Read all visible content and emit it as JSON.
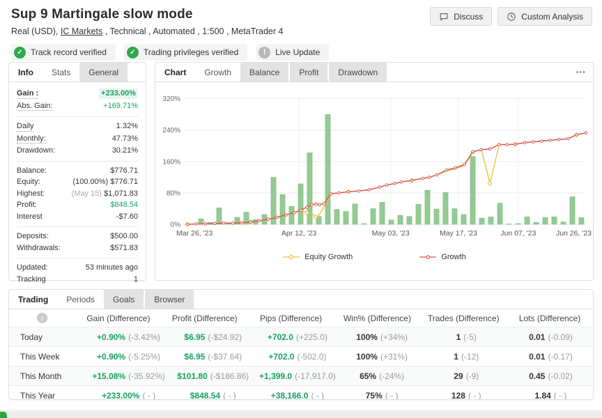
{
  "header": {
    "title": "Sup 9 Martingale slow mode",
    "subtitle_prefix": "Real (USD), ",
    "broker_link": "IC Markets",
    "subtitle_suffix": " , Technical , Automated , 1:500 , MetaTrader 4",
    "badges": [
      {
        "label": "Track record verified",
        "type": "verified",
        "icon": "check-icon"
      },
      {
        "label": "Trading privileges verified",
        "type": "verified",
        "icon": "check-icon"
      },
      {
        "label": "Live Update",
        "type": "live",
        "icon": "exclamation-icon"
      }
    ],
    "buttons": [
      {
        "label": "Discuss",
        "icon": "chat-icon"
      },
      {
        "label": "Custom Analysis",
        "icon": "clock-icon"
      }
    ]
  },
  "info_panel": {
    "tabs": [
      {
        "label": "Info",
        "state": "active"
      },
      {
        "label": "Stats",
        "state": "plain"
      },
      {
        "label": "General",
        "state": "shaded"
      }
    ],
    "rows": [
      {
        "label": "Gain :",
        "value": "+233.00%",
        "underline": 1,
        "label_bold": 1,
        "green": 1,
        "bold": 1,
        "highlight": 1
      },
      {
        "label": "Abs. Gain:",
        "value": "+169.71%",
        "underline": 1,
        "green": 1
      },
      {
        "label": "Daily",
        "value": "1.32%",
        "underline": 1,
        "sep": 1
      },
      {
        "label": "Monthly:",
        "value": "47.73%",
        "underline": 1
      },
      {
        "label": "Drawdown:",
        "value": "30.21%"
      },
      {
        "label": "Balance:",
        "value": "$776.71",
        "sep": 1
      },
      {
        "label": "Equity:",
        "value": "$776.71",
        "prefix": "(100.00%) "
      },
      {
        "label": "Highest:",
        "value": "$1,071.83",
        "prefix": "(May 15) ",
        "prefix_gray": 1
      },
      {
        "label": "Profit:",
        "value": "$848.54",
        "green": 1
      },
      {
        "label": "Interest",
        "value": "-$7.60"
      },
      {
        "label": "Deposits:",
        "value": "$500.00",
        "sep": 1
      },
      {
        "label": "Withdrawals:",
        "value": "$571.83"
      },
      {
        "label": "Updated:",
        "value": "53 minutes ago",
        "sep": 1
      },
      {
        "label": "Tracking",
        "value": "1"
      }
    ]
  },
  "chart_panel": {
    "tabs": [
      {
        "label": "Chart",
        "state": "active"
      },
      {
        "label": "Growth",
        "state": "plain"
      },
      {
        "label": "Balance",
        "state": "shaded"
      },
      {
        "label": "Profit",
        "state": "shaded"
      },
      {
        "label": "Drawdown",
        "state": "shaded"
      }
    ],
    "menu_icon": "•••"
  },
  "chart_data": {
    "type": "bar+line",
    "title": "Growth chart",
    "ylim": [
      0,
      330
    ],
    "y_ticks": [
      0,
      80,
      160,
      240,
      320
    ],
    "y_tick_labels": [
      "0%",
      "80%",
      "160%",
      "240%",
      "320%"
    ],
    "x_ticks": [
      {
        "pos": 0,
        "label": "Mar 26, '23"
      },
      {
        "pos": 0.28,
        "label": "Apr 12, '23"
      },
      {
        "pos": 0.51,
        "label": "May 03, '23"
      },
      {
        "pos": 0.68,
        "label": "May 17, '23"
      },
      {
        "pos": 0.83,
        "label": "Jun 07, '23"
      },
      {
        "pos": 1,
        "label": "Jun 26, '23"
      }
    ],
    "bars": {
      "name": "Periodic gain %",
      "color": "#8dc88d",
      "values": [
        1,
        14,
        5,
        42,
        4,
        18,
        31,
        12,
        25,
        120,
        76,
        46,
        103,
        182,
        20,
        280,
        38,
        33,
        52,
        2,
        40,
        56,
        11,
        23,
        20,
        51,
        87,
        39,
        81,
        40,
        25,
        173,
        16,
        19,
        54,
        1,
        2,
        19,
        5,
        17,
        19,
        6,
        70,
        17
      ]
    },
    "series": [
      {
        "name": "Equity Growth",
        "color": "#edc240",
        "marker": "diamond",
        "points": [
          [
            0,
            0
          ],
          [
            0.022,
            1
          ],
          [
            0.045,
            1
          ],
          [
            0.068,
            2
          ],
          [
            0.091,
            3
          ],
          [
            0.114,
            3
          ],
          [
            0.136,
            4
          ],
          [
            0.158,
            6
          ],
          [
            0.18,
            9
          ],
          [
            0.203,
            13
          ],
          [
            0.225,
            18
          ],
          [
            0.247,
            24
          ],
          [
            0.268,
            30
          ],
          [
            0.285,
            34
          ],
          [
            0.3,
            30
          ],
          [
            0.312,
            28
          ],
          [
            0.322,
            18
          ],
          [
            0.331,
            25
          ],
          [
            0.343,
            45
          ],
          [
            0.36,
            78
          ],
          [
            0.38,
            80
          ],
          [
            0.404,
            83
          ],
          [
            0.43,
            85
          ],
          [
            0.456,
            88
          ],
          [
            0.482,
            95
          ],
          [
            0.5,
            100
          ],
          [
            0.52,
            104
          ],
          [
            0.537,
            108
          ],
          [
            0.563,
            112
          ],
          [
            0.59,
            117
          ],
          [
            0.607,
            120
          ],
          [
            0.626,
            126
          ],
          [
            0.65,
            136
          ],
          [
            0.672,
            141
          ],
          [
            0.695,
            150
          ],
          [
            0.716,
            184
          ],
          [
            0.737,
            190
          ],
          [
            0.748,
            150
          ],
          [
            0.759,
            104
          ],
          [
            0.77,
            150
          ],
          [
            0.782,
            203
          ],
          [
            0.802,
            203
          ],
          [
            0.823,
            204
          ],
          [
            0.846,
            208
          ],
          [
            0.868,
            210
          ],
          [
            0.889,
            212
          ],
          [
            0.91,
            214
          ],
          [
            0.932,
            216
          ],
          [
            0.955,
            218
          ],
          [
            0.976,
            228
          ],
          [
            1,
            233
          ]
        ]
      },
      {
        "name": "Growth",
        "color": "#d9544f",
        "marker": "circle",
        "points": [
          [
            0,
            0
          ],
          [
            0.022,
            1
          ],
          [
            0.045,
            1
          ],
          [
            0.068,
            2
          ],
          [
            0.091,
            3
          ],
          [
            0.114,
            3
          ],
          [
            0.136,
            4
          ],
          [
            0.158,
            6
          ],
          [
            0.18,
            9
          ],
          [
            0.203,
            13
          ],
          [
            0.225,
            18
          ],
          [
            0.247,
            24
          ],
          [
            0.268,
            30
          ],
          [
            0.285,
            36
          ],
          [
            0.3,
            44
          ],
          [
            0.312,
            50
          ],
          [
            0.322,
            52
          ],
          [
            0.331,
            50
          ],
          [
            0.343,
            53
          ],
          [
            0.36,
            78
          ],
          [
            0.38,
            80
          ],
          [
            0.404,
            83
          ],
          [
            0.43,
            85
          ],
          [
            0.456,
            88
          ],
          [
            0.482,
            95
          ],
          [
            0.5,
            100
          ],
          [
            0.52,
            104
          ],
          [
            0.537,
            108
          ],
          [
            0.563,
            112
          ],
          [
            0.59,
            117
          ],
          [
            0.607,
            120
          ],
          [
            0.626,
            126
          ],
          [
            0.65,
            138
          ],
          [
            0.672,
            144
          ],
          [
            0.695,
            152
          ],
          [
            0.716,
            185
          ],
          [
            0.737,
            190
          ],
          [
            0.759,
            192
          ],
          [
            0.782,
            203
          ],
          [
            0.802,
            203
          ],
          [
            0.823,
            204
          ],
          [
            0.846,
            208
          ],
          [
            0.868,
            210
          ],
          [
            0.889,
            212
          ],
          [
            0.91,
            214
          ],
          [
            0.932,
            216
          ],
          [
            0.955,
            218
          ],
          [
            0.976,
            228
          ],
          [
            1,
            233
          ]
        ]
      }
    ],
    "legend": [
      "Equity Growth",
      "Growth"
    ],
    "legend_position": "bottom-center",
    "grid": true
  },
  "periods_panel": {
    "tabs": [
      {
        "label": "Trading",
        "state": "active"
      },
      {
        "label": "Periods",
        "state": "plain"
      },
      {
        "label": "Goals",
        "state": "shaded"
      },
      {
        "label": "Browser",
        "state": "shaded"
      }
    ],
    "table": {
      "columns": [
        "Gain (Difference)",
        "Profit (Difference)",
        "Pips (Difference)",
        "Win% (Difference)",
        "Trades (Difference)",
        "Lots (Difference)"
      ],
      "rows": [
        {
          "label": "Today",
          "cells": [
            {
              "value": "+0.90%",
              "diff": "(-3.42%)",
              "green": 1
            },
            {
              "value": "$6.95",
              "diff": "(-$24.92)",
              "green": 1
            },
            {
              "value": "+702.0",
              "diff": "(+225.0)",
              "green": 1
            },
            {
              "value": "100%",
              "diff": "(+34%)"
            },
            {
              "value": "1",
              "diff": "(-5)"
            },
            {
              "value": "0.01",
              "diff": "(-0.09)"
            }
          ]
        },
        {
          "label": "This Week",
          "cells": [
            {
              "value": "+0.90%",
              "diff": "(-5.25%)",
              "green": 1
            },
            {
              "value": "$6.95",
              "diff": "(-$37.64)",
              "green": 1
            },
            {
              "value": "+702.0",
              "diff": "(-502.0)",
              "green": 1
            },
            {
              "value": "100%",
              "diff": "(+31%)"
            },
            {
              "value": "1",
              "diff": "(-12)"
            },
            {
              "value": "0.01",
              "diff": "(-0.17)"
            }
          ]
        },
        {
          "label": "This Month",
          "cells": [
            {
              "value": "+15.08%",
              "diff": "(-35.92%)",
              "green": 1
            },
            {
              "value": "$101.80",
              "diff": "(-$186.86)",
              "green": 1
            },
            {
              "value": "+1,399.0",
              "diff": "(-17,917.0)",
              "green": 1
            },
            {
              "value": "65%",
              "diff": "(-24%)"
            },
            {
              "value": "29",
              "diff": "(-9)"
            },
            {
              "value": "0.45",
              "diff": "(-0.02)"
            }
          ]
        },
        {
          "label": "This Year",
          "cells": [
            {
              "value": "+233.00%",
              "diff": "( - )",
              "green": 1
            },
            {
              "value": "$848.54",
              "diff": "( - )",
              "green": 1
            },
            {
              "value": "+38,166.0",
              "diff": "( - )",
              "green": 1
            },
            {
              "value": "75%",
              "diff": "( - )"
            },
            {
              "value": "128",
              "diff": "( - )"
            },
            {
              "value": "1.84",
              "diff": "( - )"
            }
          ]
        }
      ]
    }
  },
  "colors": {
    "green_text": "#16a25f",
    "growth_line": "#d9544f",
    "equity_line": "#edc240",
    "bars": "#8dc88d",
    "badge_green": "#2fa84f"
  }
}
